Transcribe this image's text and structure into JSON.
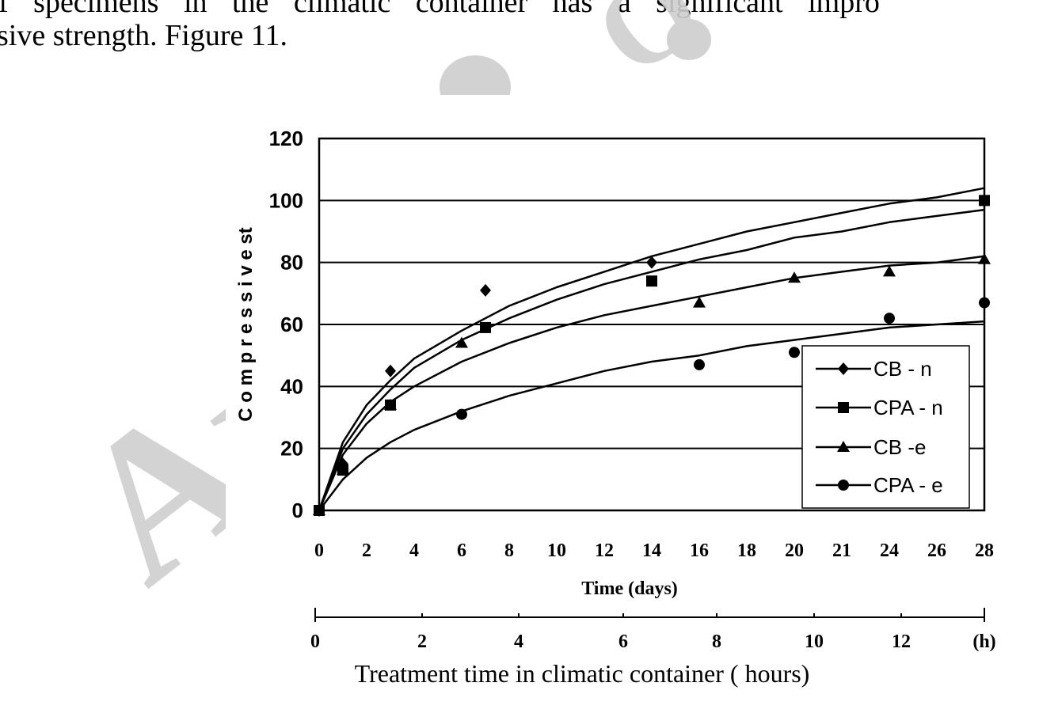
{
  "document": {
    "line1": "f specimens in the climatic container has a significant impro",
    "line2": "sive strength. Figure 11."
  },
  "watermark": {
    "text_left": "Ar",
    "text_top": "O"
  },
  "chart_data": {
    "type": "scatter",
    "ylabel": "C o m p r e s s i v e  st",
    "xlabel": "Time  (days)",
    "x2label": "Treatment time in climatic container ( hours)",
    "x_ticks": [
      "0",
      "2",
      "4",
      "6",
      "8",
      "10",
      "12",
      "14",
      "16",
      "18",
      "20",
      "21",
      "24",
      "26",
      "28"
    ],
    "y_ticks": [
      "0",
      "20",
      "40",
      "60",
      "80",
      "100",
      "120"
    ],
    "x2_ticks": [
      "0",
      "2",
      "4",
      "6",
      "8",
      "10",
      "12",
      "(h)"
    ],
    "ylim": [
      0,
      120
    ],
    "xlim": [
      0,
      28
    ],
    "grid": "horizontal",
    "legend_position": "bottom-right",
    "series": [
      {
        "name": "CB - n",
        "marker": "diamond",
        "points": [
          [
            0,
            0
          ],
          [
            1,
            15
          ],
          [
            3,
            45
          ],
          [
            7,
            71
          ],
          [
            14,
            80
          ],
          [
            28,
            100
          ]
        ],
        "fit": [
          [
            0,
            0
          ],
          [
            1,
            22
          ],
          [
            2,
            34
          ],
          [
            3,
            42
          ],
          [
            4,
            49
          ],
          [
            6,
            58
          ],
          [
            8,
            66
          ],
          [
            10,
            72
          ],
          [
            12,
            77
          ],
          [
            14,
            82
          ],
          [
            16,
            86
          ],
          [
            18,
            90
          ],
          [
            20,
            93
          ],
          [
            22,
            96
          ],
          [
            24,
            99
          ],
          [
            26,
            101
          ],
          [
            28,
            104
          ]
        ]
      },
      {
        "name": "CPA - n",
        "marker": "square",
        "points": [
          [
            0,
            0
          ],
          [
            1,
            13
          ],
          [
            3,
            34
          ],
          [
            7,
            59
          ],
          [
            14,
            74
          ],
          [
            28,
            100
          ]
        ],
        "fit": [
          [
            0,
            0
          ],
          [
            1,
            20
          ],
          [
            2,
            31
          ],
          [
            3,
            39
          ],
          [
            4,
            46
          ],
          [
            6,
            55
          ],
          [
            8,
            62
          ],
          [
            10,
            68
          ],
          [
            12,
            73
          ],
          [
            14,
            77
          ],
          [
            16,
            81
          ],
          [
            18,
            84
          ],
          [
            20,
            88
          ],
          [
            22,
            90
          ],
          [
            24,
            93
          ],
          [
            26,
            95
          ],
          [
            28,
            97
          ]
        ]
      },
      {
        "name": "CB -e",
        "marker": "triangle",
        "points": [
          [
            0,
            0
          ],
          [
            1,
            13
          ],
          [
            3,
            34
          ],
          [
            6,
            54
          ],
          [
            16,
            67
          ],
          [
            20,
            75
          ],
          [
            24,
            77
          ],
          [
            28,
            81
          ]
        ],
        "fit": [
          [
            0,
            0
          ],
          [
            1,
            18
          ],
          [
            2,
            28
          ],
          [
            3,
            35
          ],
          [
            4,
            40
          ],
          [
            6,
            48
          ],
          [
            8,
            54
          ],
          [
            10,
            59
          ],
          [
            12,
            63
          ],
          [
            14,
            66
          ],
          [
            16,
            69
          ],
          [
            18,
            72
          ],
          [
            20,
            75
          ],
          [
            22,
            77
          ],
          [
            24,
            79
          ],
          [
            26,
            80
          ],
          [
            28,
            82
          ]
        ]
      },
      {
        "name": "CPA - e",
        "marker": "circle",
        "points": [
          [
            0,
            0
          ],
          [
            1,
            13
          ],
          [
            6,
            31
          ],
          [
            16,
            47
          ],
          [
            20,
            51
          ],
          [
            24,
            62
          ],
          [
            28,
            67
          ],
          [
            28,
            100
          ]
        ],
        "fit": [
          [
            0,
            0
          ],
          [
            1,
            10
          ],
          [
            2,
            17
          ],
          [
            3,
            22
          ],
          [
            4,
            26
          ],
          [
            6,
            32
          ],
          [
            8,
            37
          ],
          [
            10,
            41
          ],
          [
            12,
            45
          ],
          [
            14,
            48
          ],
          [
            16,
            50
          ],
          [
            18,
            53
          ],
          [
            20,
            55
          ],
          [
            22,
            57
          ],
          [
            24,
            59
          ],
          [
            26,
            60
          ],
          [
            28,
            61
          ]
        ]
      }
    ]
  }
}
